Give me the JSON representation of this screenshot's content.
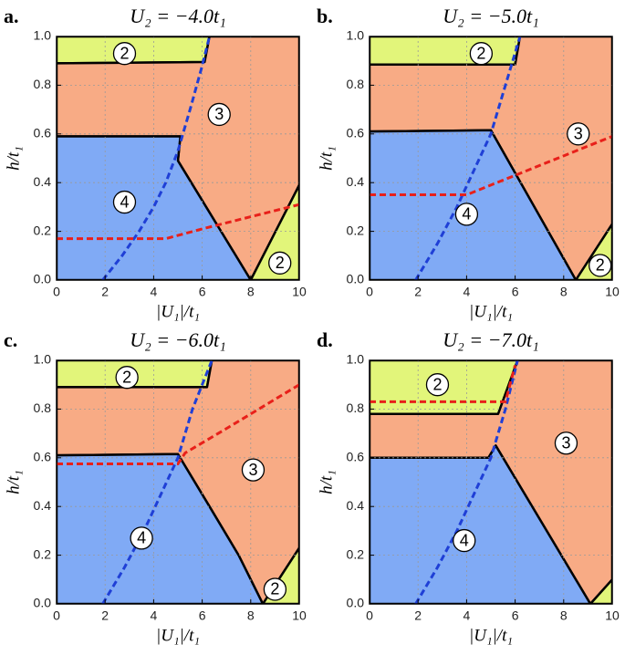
{
  "chart_data": [
    {
      "type": "phase",
      "panel": "a.",
      "title": "U₂ = −4.0t₁",
      "x_label": "|U₁|/t₁",
      "y_label": "h/t₁",
      "xlim": [
        0,
        10
      ],
      "ylim": [
        0,
        1
      ],
      "xticks": [
        0,
        2,
        4,
        6,
        8,
        10
      ],
      "yticks": [
        {
          "value": 0,
          "label": "0.0"
        },
        0.2,
        0.4,
        0.6,
        0.8,
        {
          "value": 1,
          "label": "1.0"
        }
      ],
      "grid": true,
      "regions": [
        {
          "name": "2",
          "color": "#e2f57a",
          "x": [
            0,
            6.3,
            6.1,
            0
          ],
          "y": [
            1,
            1,
            0.895,
            0.89
          ]
        },
        {
          "name": "3",
          "color": "#f8ab85",
          "x": [
            0,
            0,
            6.1,
            6.3,
            10,
            10,
            8,
            5,
            5.1
          ],
          "y": [
            0.59,
            0.89,
            0.895,
            1,
            1,
            0.39,
            0,
            0.49,
            0.59
          ]
        },
        {
          "name": "4",
          "color": "#80aaf5",
          "x": [
            0,
            0,
            5.1,
            5,
            8
          ],
          "y": [
            0,
            0.59,
            0.59,
            0.49,
            0
          ]
        },
        {
          "name": "2",
          "color": "#e2f57a",
          "x": [
            8,
            10,
            10
          ],
          "y": [
            0,
            0,
            0.39
          ]
        }
      ],
      "lines": [
        {
          "color": "#1f3fd6",
          "x": [
            1.9,
            2.7,
            3.4,
            4,
            4.5,
            5,
            5.5,
            6,
            6.3
          ],
          "y": [
            0,
            0.1,
            0.2,
            0.3,
            0.4,
            0.53,
            0.7,
            0.88,
            1
          ]
        },
        {
          "color": "#e8201a",
          "x": [
            0,
            4.5,
            6,
            8,
            10
          ],
          "y": [
            0.17,
            0.17,
            0.21,
            0.26,
            0.31
          ]
        }
      ]
    },
    {
      "type": "phase",
      "panel": "b.",
      "title": "U₂ = −5.0t₁",
      "x_label": "|U₁|/t₁",
      "y_label": "h/t₁",
      "xlim": [
        0,
        10
      ],
      "ylim": [
        0,
        1
      ],
      "xticks": [
        0,
        2,
        4,
        6,
        8,
        10
      ],
      "yticks": [
        {
          "value": 0,
          "label": "0.0"
        },
        0.2,
        0.4,
        0.6,
        0.8,
        {
          "value": 1,
          "label": "1.0"
        }
      ],
      "grid": true,
      "regions": [
        {
          "name": "2",
          "color": "#e2f57a",
          "x": [
            0,
            6.2,
            6,
            0
          ],
          "y": [
            1,
            1,
            0.885,
            0.885
          ]
        },
        {
          "name": "3",
          "color": "#f8ab85",
          "x": [
            0,
            0,
            6,
            6.2,
            10,
            10,
            8.5,
            5
          ],
          "y": [
            0.61,
            0.885,
            0.885,
            1,
            1,
            0.23,
            0,
            0.615
          ]
        },
        {
          "name": "4",
          "color": "#80aaf5",
          "x": [
            0,
            0,
            5,
            8.5
          ],
          "y": [
            0,
            0.61,
            0.615,
            0
          ]
        },
        {
          "name": "2",
          "color": "#e2f57a",
          "x": [
            8.5,
            10,
            10
          ],
          "y": [
            0,
            0,
            0.23
          ]
        }
      ],
      "lines": [
        {
          "color": "#1f3fd6",
          "x": [
            1.9,
            2.8,
            3.6,
            4.3,
            5,
            5.6,
            6.2
          ],
          "y": [
            0,
            0.15,
            0.3,
            0.45,
            0.6,
            0.8,
            1
          ]
        },
        {
          "color": "#e8201a",
          "x": [
            0,
            4,
            6,
            8,
            10
          ],
          "y": [
            0.35,
            0.35,
            0.43,
            0.51,
            0.59
          ]
        }
      ]
    },
    {
      "type": "phase",
      "panel": "c.",
      "title": "U₂ = −6.0t₁",
      "x_label": "|U₁|/t₁",
      "y_label": "h/t₁",
      "xlim": [
        0,
        10
      ],
      "ylim": [
        0,
        1
      ],
      "xticks": [
        0,
        2,
        4,
        6,
        8,
        10
      ],
      "yticks": [
        {
          "value": 0,
          "label": "0.0"
        },
        0.2,
        0.4,
        0.6,
        0.8,
        {
          "value": 1,
          "label": "1.0"
        }
      ],
      "grid": true,
      "regions": [
        {
          "name": "2",
          "color": "#e2f57a",
          "x": [
            0,
            6.4,
            6.2,
            0
          ],
          "y": [
            1,
            1,
            0.89,
            0.89
          ]
        },
        {
          "name": "3",
          "color": "#f8ab85",
          "x": [
            0,
            0,
            6.2,
            6.4,
            10,
            10,
            8.5,
            7.5,
            6.3,
            5
          ],
          "y": [
            0.61,
            0.89,
            0.89,
            1,
            1,
            0.23,
            0,
            0.2,
            0.4,
            0.615
          ]
        },
        {
          "name": "4",
          "color": "#80aaf5",
          "x": [
            0,
            0,
            5,
            6.3,
            7.5,
            8.5
          ],
          "y": [
            0,
            0.61,
            0.615,
            0.4,
            0.2,
            0
          ]
        },
        {
          "name": "2",
          "color": "#e2f57a",
          "x": [
            8.5,
            10,
            10
          ],
          "y": [
            0,
            0,
            0.23
          ]
        }
      ],
      "lines": [
        {
          "color": "#1f3fd6",
          "x": [
            1.9,
            2.8,
            3.6,
            4.3,
            5,
            5.6,
            6.4
          ],
          "y": [
            0,
            0.15,
            0.3,
            0.45,
            0.6,
            0.8,
            1
          ]
        },
        {
          "color": "#e8201a",
          "x": [
            0,
            5,
            5.3,
            7,
            10
          ],
          "y": [
            0.575,
            0.575,
            0.62,
            0.72,
            0.9
          ]
        }
      ]
    },
    {
      "type": "phase",
      "panel": "d.",
      "title": "U₂ = −7.0t₁",
      "x_label": "|U₁|/t₁",
      "y_label": "h/t₁",
      "xlim": [
        0,
        10
      ],
      "ylim": [
        0,
        1
      ],
      "xticks": [
        0,
        2,
        4,
        6,
        8,
        10
      ],
      "yticks": [
        {
          "value": 0,
          "label": "0.0"
        },
        0.2,
        0.4,
        0.6,
        0.8,
        {
          "value": 1,
          "label": "1.0"
        }
      ],
      "grid": true,
      "regions": [
        {
          "name": "2",
          "color": "#e2f57a",
          "x": [
            0,
            6.1,
            5.3,
            0
          ],
          "y": [
            1,
            1,
            0.78,
            0.78
          ]
        },
        {
          "name": "3",
          "color": "#f8ab85",
          "x": [
            0,
            0,
            5.3,
            6.1,
            10,
            10,
            9.1,
            5.2,
            4.9
          ],
          "y": [
            0.6,
            0.78,
            0.78,
            1,
            1,
            0.1,
            0,
            0.65,
            0.6
          ]
        },
        {
          "name": "4",
          "color": "#80aaf5",
          "x": [
            0,
            0,
            4.9,
            5.2,
            9.1
          ],
          "y": [
            0,
            0.6,
            0.6,
            0.65,
            0
          ]
        },
        {
          "color": "#e2f57a",
          "x": [
            9.1,
            10,
            10
          ],
          "y": [
            0,
            0,
            0.1
          ]
        }
      ],
      "lines": [
        {
          "color": "#1f3fd6",
          "x": [
            1.9,
            2.8,
            3.6,
            4.3,
            5,
            5.6,
            6.1
          ],
          "y": [
            0,
            0.15,
            0.3,
            0.45,
            0.6,
            0.8,
            1
          ]
        },
        {
          "color": "#e8201a",
          "x": [
            0,
            5.6,
            6
          ],
          "y": [
            0.83,
            0.83,
            0.98
          ]
        }
      ]
    }
  ]
}
